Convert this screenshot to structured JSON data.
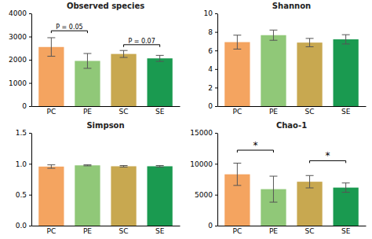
{
  "chart_data": [
    {
      "type": "bar",
      "title": "Observed species",
      "categories": [
        "PC",
        "PE",
        "SC",
        "SE"
      ],
      "values": [
        2550,
        1950,
        2250,
        2060
      ],
      "errors": [
        400,
        320,
        150,
        130
      ],
      "colors": [
        "#F4A460",
        "#90C878",
        "#C8A850",
        "#1A9A50"
      ],
      "ylim": [
        0,
        4000
      ],
      "yticks": [
        0,
        1000,
        2000,
        3000,
        4000
      ],
      "grid": false,
      "brackets": [
        {
          "from": "PC",
          "to": "PE",
          "y": 3250,
          "label": "P = 0.05"
        },
        {
          "from": "SC",
          "to": "SE",
          "y": 2650,
          "label": "P = 0.07"
        }
      ]
    },
    {
      "type": "bar",
      "title": "Shannon",
      "categories": [
        "PC",
        "PE",
        "SC",
        "SE"
      ],
      "values": [
        6.9,
        7.65,
        6.85,
        7.2
      ],
      "errors": [
        0.75,
        0.55,
        0.45,
        0.5
      ],
      "colors": [
        "#F4A460",
        "#90C878",
        "#C8A850",
        "#1A9A50"
      ],
      "ylim": [
        0,
        10
      ],
      "yticks": [
        0,
        2,
        4,
        6,
        8,
        10
      ],
      "grid": false,
      "brackets": []
    },
    {
      "type": "bar",
      "title": "Simpson",
      "categories": [
        "PC",
        "PE",
        "SC",
        "SE"
      ],
      "values": [
        0.955,
        0.975,
        0.96,
        0.96
      ],
      "errors": [
        0.028,
        0.008,
        0.012,
        0.012
      ],
      "colors": [
        "#F4A460",
        "#90C878",
        "#C8A850",
        "#1A9A50"
      ],
      "ylim": [
        0,
        1.5
      ],
      "yticks": [
        {
          "value": 0,
          "label": "0.0"
        },
        0.5,
        {
          "value": 1,
          "label": "1.0"
        },
        1.5
      ],
      "grid": false,
      "brackets": []
    },
    {
      "type": "bar",
      "title": "Chao-1",
      "categories": [
        "PC",
        "PE",
        "SC",
        "SE"
      ],
      "values": [
        8300,
        5900,
        7100,
        6150
      ],
      "errors": [
        1800,
        2100,
        1000,
        750
      ],
      "colors": [
        "#F4A460",
        "#90C878",
        "#C8A850",
        "#1A9A50"
      ],
      "ylim": [
        0,
        15000
      ],
      "yticks": [
        0,
        5000,
        10000,
        15000
      ],
      "grid": false,
      "brackets": [
        {
          "from": "PC",
          "to": "PE",
          "y": 12200,
          "label": "*"
        },
        {
          "from": "SC",
          "to": "SE",
          "y": 10500,
          "label": "*"
        }
      ]
    }
  ]
}
